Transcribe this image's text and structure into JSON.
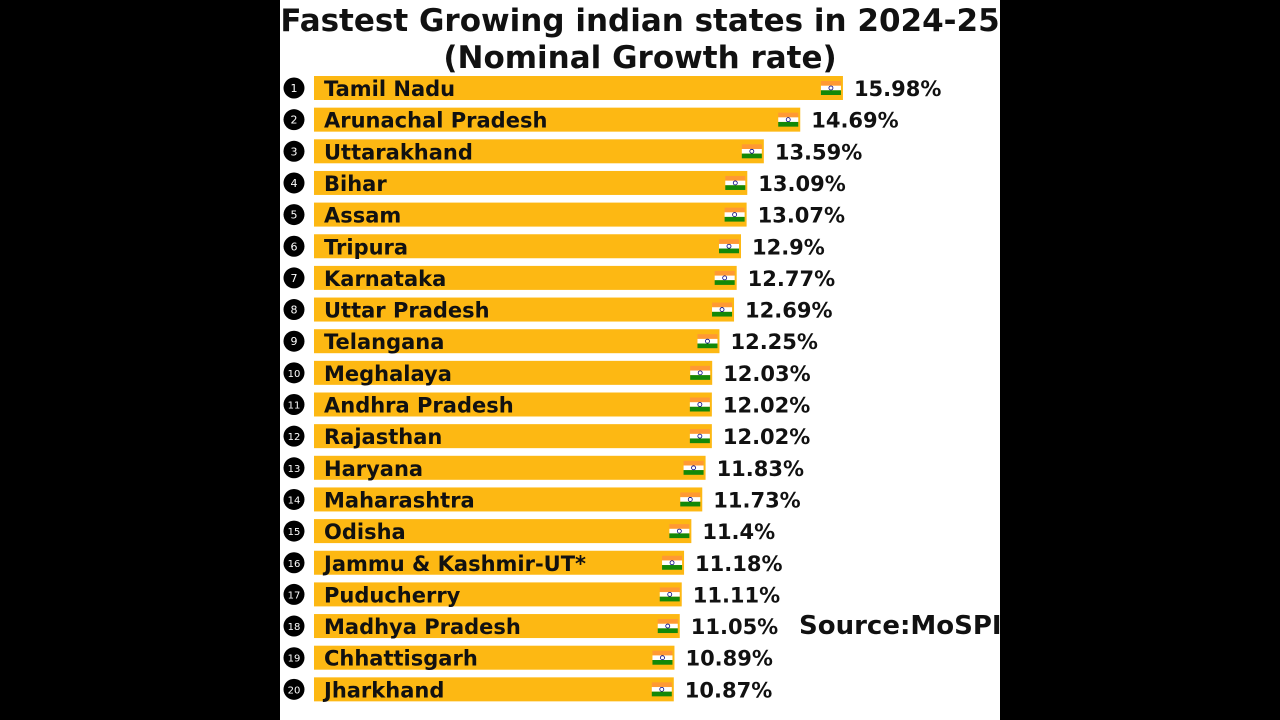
{
  "title": {
    "line1": "Fastest Growing indian states in 2024-25",
    "line2": "(Nominal Growth rate)"
  },
  "source": "Source:MoSPI",
  "colors": {
    "bar": "#FDB813",
    "rank_badge": "#000000",
    "text": "#111111",
    "flag_saffron": "#FF9933",
    "flag_white": "#FFFFFF",
    "flag_green": "#138808",
    "flag_chakra": "#000080"
  },
  "icon": "india-flag-icon",
  "chart_data": {
    "type": "bar",
    "orientation": "horizontal",
    "title": "Fastest Growing indian states in 2024-25 (Nominal Growth rate)",
    "xlabel": "",
    "ylabel": "",
    "categories": [
      "Tamil Nadu",
      "Arunachal Pradesh",
      "Uttarakhand",
      "Bihar",
      "Assam",
      "Tripura",
      "Karnataka",
      "Uttar Pradesh",
      "Telangana",
      "Meghalaya",
      "Andhra Pradesh",
      "Rajasthan",
      "Haryana",
      "Maharashtra",
      "Odisha",
      "Jammu & Kashmir-UT*",
      "Puducherry",
      "Madhya Pradesh",
      "Chhattisgarh",
      "Jharkhand"
    ],
    "ranks": [
      "1",
      "2",
      "3",
      "4",
      "5",
      "6",
      "7",
      "8",
      "9",
      "10",
      "11",
      "12",
      "13",
      "14",
      "15",
      "16",
      "17",
      "18",
      "19",
      "20"
    ],
    "values": [
      15.98,
      14.69,
      13.59,
      13.09,
      13.07,
      12.9,
      12.77,
      12.69,
      12.25,
      12.03,
      12.02,
      12.02,
      11.83,
      11.73,
      11.4,
      11.18,
      11.11,
      11.05,
      10.89,
      10.87
    ],
    "value_labels": [
      "15.98%",
      "14.69%",
      "13.59%",
      "13.09%",
      "13.07%",
      "12.9%",
      "12.77%",
      "12.69%",
      "12.25%",
      "12.03%",
      "12.02%",
      "12.02%",
      "11.83%",
      "11.73%",
      "11.4%",
      "11.18%",
      "11.11%",
      "11.05%",
      "10.89%",
      "10.87%"
    ],
    "xlim": [
      0,
      16
    ],
    "grid": false,
    "legend": "none"
  }
}
